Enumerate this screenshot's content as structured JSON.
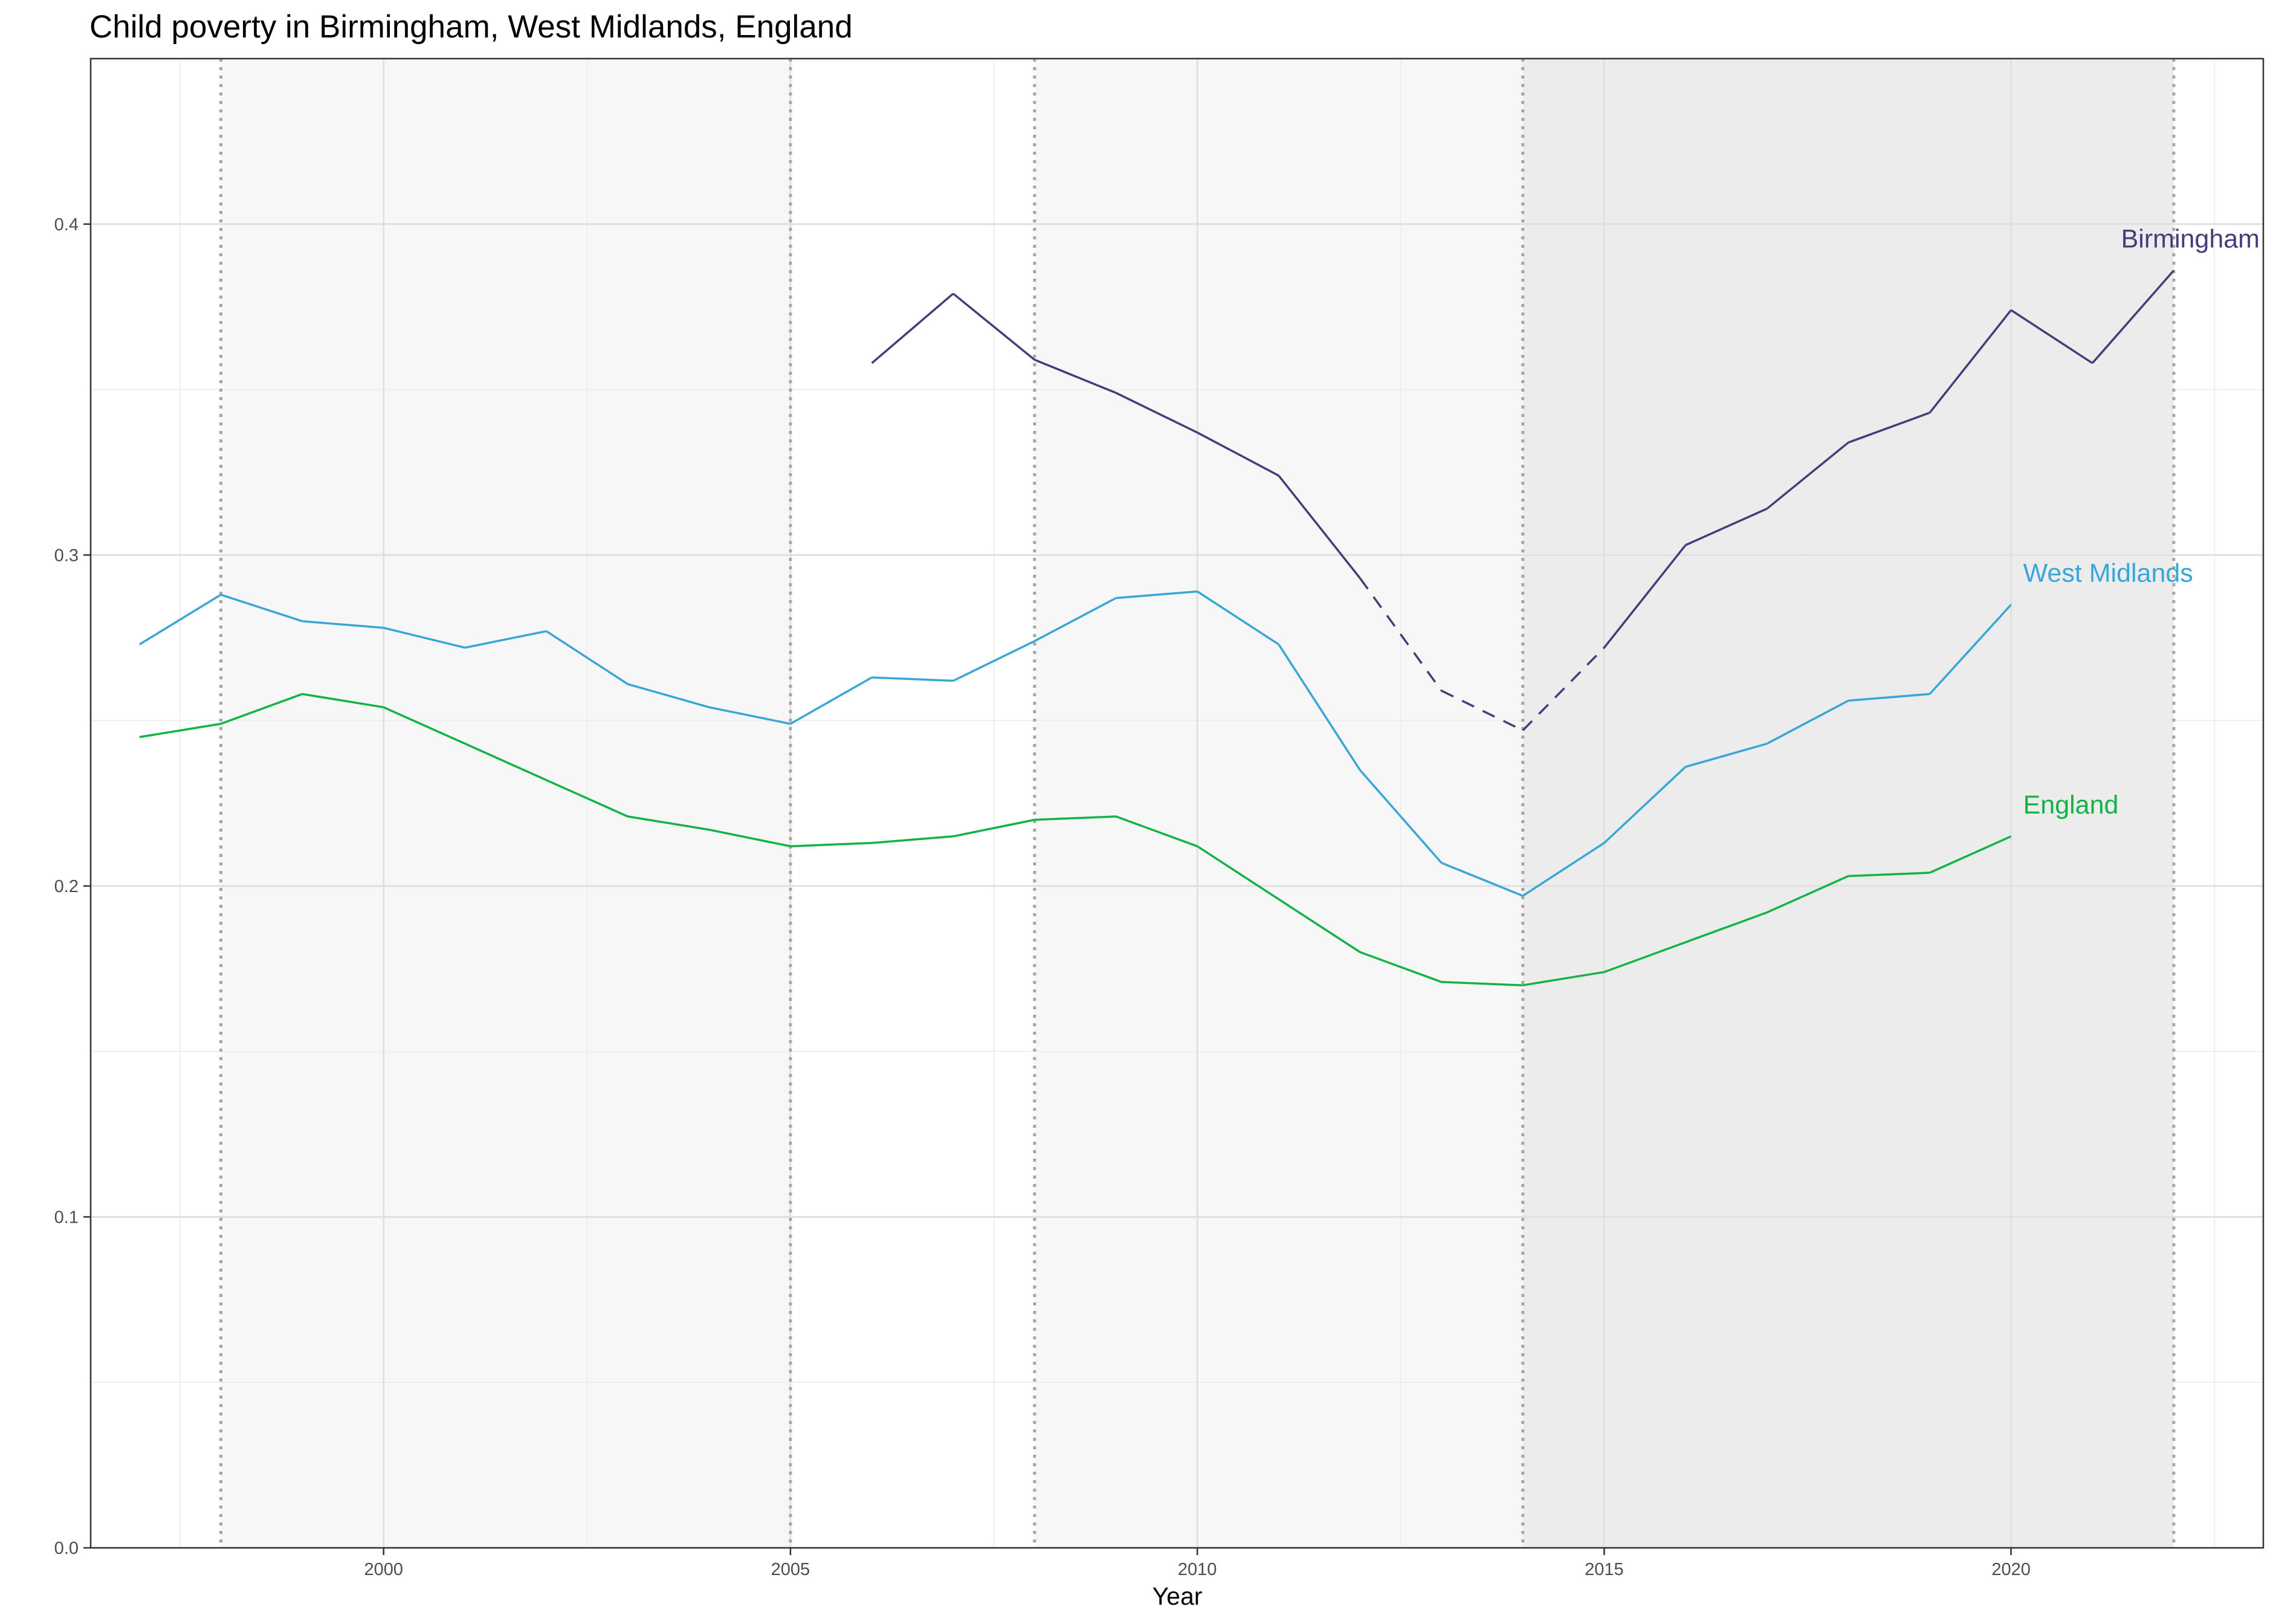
{
  "chart_data": {
    "type": "line",
    "title": "Child poverty in Birmingham, West Midlands, England",
    "xlabel": "Year",
    "ylabel": "",
    "xlim": [
      1996.4,
      2023.1
    ],
    "ylim": [
      0.0,
      0.45
    ],
    "x_ticks": [
      2000,
      2005,
      2010,
      2015,
      2020
    ],
    "x_tick_labels": [
      "2000",
      "2005",
      "2010",
      "2015",
      "2020"
    ],
    "y_ticks": [
      0.0,
      0.1,
      0.2,
      0.3,
      0.4
    ],
    "y_tick_labels": [
      "0.0",
      "0.1",
      "0.2",
      "0.3",
      "0.4"
    ],
    "grid": true,
    "legend": "direct labels at line ends",
    "background_bands": [
      {
        "from": 1998,
        "to": 2005,
        "shade": "#f7f7f7"
      },
      {
        "from": 2005,
        "to": 2008,
        "shade": "#ffffff"
      },
      {
        "from": 2008,
        "to": 2014,
        "shade": "#f7f7f7"
      },
      {
        "from": 2014,
        "to": 2022,
        "shade": "#ececec"
      }
    ],
    "vertical_markers": [
      1998,
      2005,
      2008,
      2014,
      2022
    ],
    "series": [
      {
        "name": "Birmingham",
        "color": "#4b3a7a",
        "label_text": "Birmingham",
        "x": [
          2006,
          2007,
          2008,
          2009,
          2010,
          2011,
          2012,
          2013,
          2014,
          2015,
          2016,
          2017,
          2018,
          2019,
          2020,
          2021,
          2022
        ],
        "values": [
          0.358,
          0.379,
          0.359,
          0.349,
          0.337,
          0.324,
          0.293,
          0.259,
          0.247,
          0.272,
          0.303,
          0.314,
          0.334,
          0.343,
          0.374,
          0.358,
          0.386
        ],
        "dashed_segments": [
          [
            2012,
            2015
          ]
        ]
      },
      {
        "name": "West Midlands",
        "color": "#38a6d6",
        "label_text": "West Midlands",
        "x": [
          1997,
          1998,
          1999,
          2000,
          2001,
          2002,
          2003,
          2004,
          2005,
          2006,
          2007,
          2008,
          2009,
          2010,
          2011,
          2012,
          2013,
          2014,
          2015,
          2016,
          2017,
          2018,
          2019,
          2020
        ],
        "values": [
          0.273,
          0.288,
          0.28,
          0.278,
          0.272,
          0.277,
          0.261,
          0.254,
          0.249,
          0.263,
          0.262,
          0.274,
          0.287,
          0.289,
          0.273,
          0.235,
          0.207,
          0.197,
          0.213,
          0.236,
          0.243,
          0.256,
          0.258,
          0.285
        ],
        "dashed_segments": []
      },
      {
        "name": "England",
        "color": "#12b346",
        "label_text": "England",
        "x": [
          1997,
          1998,
          1999,
          2000,
          2001,
          2002,
          2003,
          2004,
          2005,
          2006,
          2007,
          2008,
          2009,
          2010,
          2011,
          2012,
          2013,
          2014,
          2015,
          2016,
          2017,
          2018,
          2019,
          2020
        ],
        "values": [
          0.245,
          0.249,
          0.258,
          0.254,
          0.243,
          0.232,
          0.221,
          0.217,
          0.212,
          0.213,
          0.215,
          0.22,
          0.221,
          0.212,
          0.196,
          0.18,
          0.171,
          0.17,
          0.174,
          0.183,
          0.192,
          0.203,
          0.204,
          0.215
        ],
        "dashed_segments": []
      }
    ]
  }
}
